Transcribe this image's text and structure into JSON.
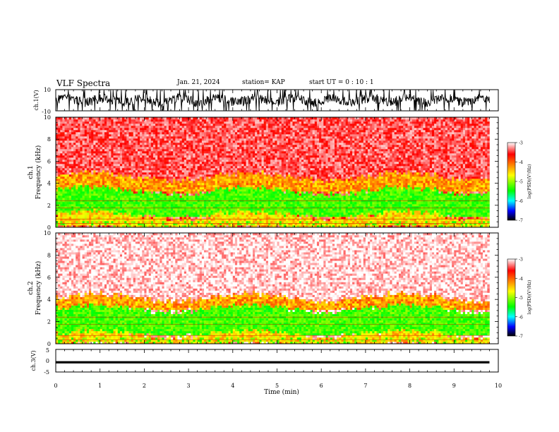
{
  "header": {
    "title": "VLF Spectra",
    "date": "Jan. 21, 2024",
    "station": "station= KAP",
    "start": "start  UT =   0 : 10 : 1"
  },
  "colorbar": {
    "label": "log(PSD)(V²/Hz)",
    "ticks": [
      "-3",
      "-4",
      "-5",
      "-6",
      "-7"
    ],
    "stops": [
      "#ffffff",
      "#ff0000",
      "#ffff00",
      "#00ff00",
      "#00ffff",
      "#0000ff",
      "#000000"
    ]
  },
  "chart_data": [
    {
      "type": "line",
      "panel": "ch.1 waveform",
      "ylabel": "ch.1(V)",
      "ylim": [
        -10,
        10
      ],
      "yticks": [
        "10",
        "-10"
      ],
      "xlim": [
        0,
        10
      ],
      "x_span_min": [
        0,
        9.8
      ],
      "description_values": {
        "signal": "noisy waveform spanning roughly -10 to 10 V"
      }
    },
    {
      "type": "heatmap",
      "panel": "ch.1 spectrogram",
      "ylabel": "ch.1\nFrequency (kHz)",
      "ylim": [
        0,
        10
      ],
      "yticks": [
        "0",
        "2",
        "4",
        "6",
        "8",
        "10"
      ],
      "xlim": [
        0,
        10
      ],
      "x_span_min": [
        0,
        9.8
      ],
      "zlim": [
        -7,
        -3
      ],
      "bands_khz": [
        {
          "from": 0,
          "to": 1.1,
          "level": -4.3
        },
        {
          "from": 1.1,
          "to": 3.3,
          "level": -5.0
        },
        {
          "from": 3.3,
          "to": 4.6,
          "level": -4.1
        },
        {
          "from": 4.6,
          "to": 10,
          "level": -3.4
        }
      ]
    },
    {
      "type": "heatmap",
      "panel": "ch.2 spectrogram",
      "ylabel": "ch.2\nFrequency (kHz)",
      "ylim": [
        0,
        10
      ],
      "yticks": [
        "0",
        "2",
        "4",
        "6",
        "8",
        "10"
      ],
      "xlim": [
        0,
        10
      ],
      "x_span_min": [
        0,
        9.8
      ],
      "zlim": [
        -7,
        -3
      ],
      "bands_khz": [
        {
          "from": 0,
          "to": 0.9,
          "level": -4.3
        },
        {
          "from": 0.9,
          "to": 3.2,
          "level": -5.0
        },
        {
          "from": 3.2,
          "to": 4.2,
          "level": -4.1
        },
        {
          "from": 4.2,
          "to": 10,
          "level": -3.1
        }
      ]
    },
    {
      "type": "line",
      "panel": "ch.3 waveform",
      "ylabel": "ch.3(V)",
      "ylim": [
        -5,
        5
      ],
      "yticks": [
        "5",
        "0",
        "-5"
      ],
      "xlim": [
        0,
        10
      ],
      "x_span_min": [
        0,
        9.8
      ],
      "level_band_v": [
        -1.2,
        -0.2
      ]
    }
  ],
  "xaxis": {
    "label": "Time (min)",
    "ticks": [
      "0",
      "1",
      "2",
      "3",
      "4",
      "5",
      "6",
      "7",
      "8",
      "9",
      "10"
    ]
  }
}
